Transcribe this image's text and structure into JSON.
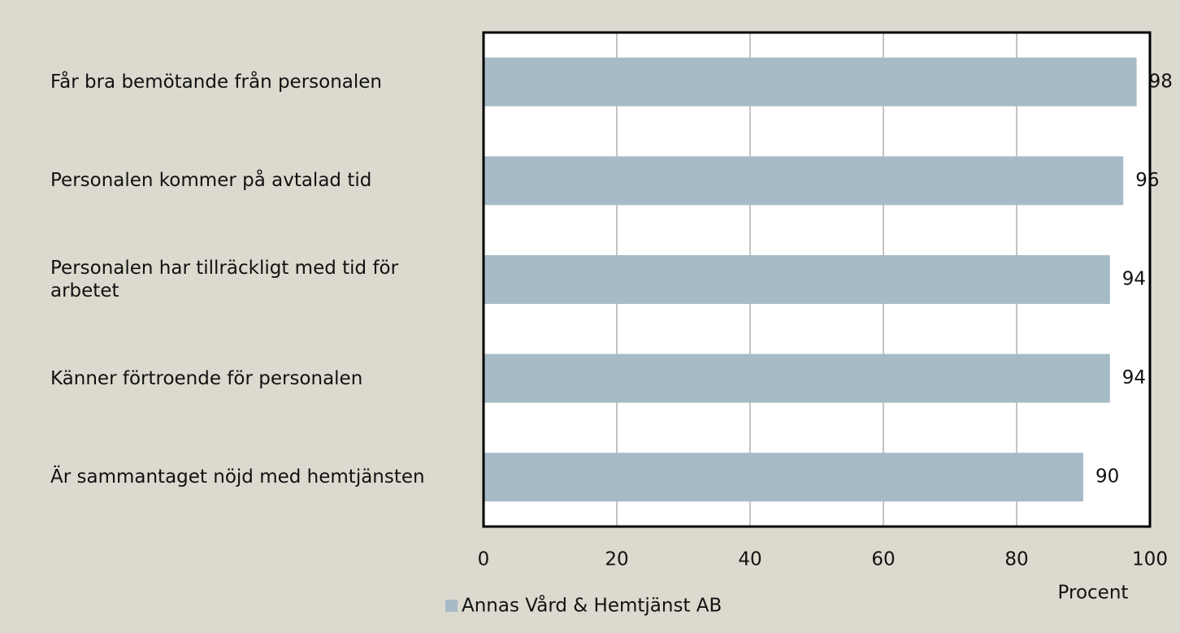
{
  "chart_data": {
    "type": "bar",
    "orientation": "horizontal",
    "categories": [
      "Får bra bemötande från personalen",
      "Personalen kommer på avtalad tid",
      "Personalen har tillräckligt med tid för arbetet",
      "Känner förtroende för personalen",
      "Är sammantaget nöjd med hemtjänsten"
    ],
    "series": [
      {
        "name": "Annas Vård & Hemtjänst AB",
        "color": "#a7bbc6",
        "values": [
          98,
          96,
          94,
          94,
          90
        ]
      }
    ],
    "xlim": [
      0,
      100
    ],
    "xticks": [
      0,
      20,
      40,
      60,
      80,
      100
    ],
    "xlabel": "Procent",
    "grid": true,
    "legend": "bottom"
  }
}
